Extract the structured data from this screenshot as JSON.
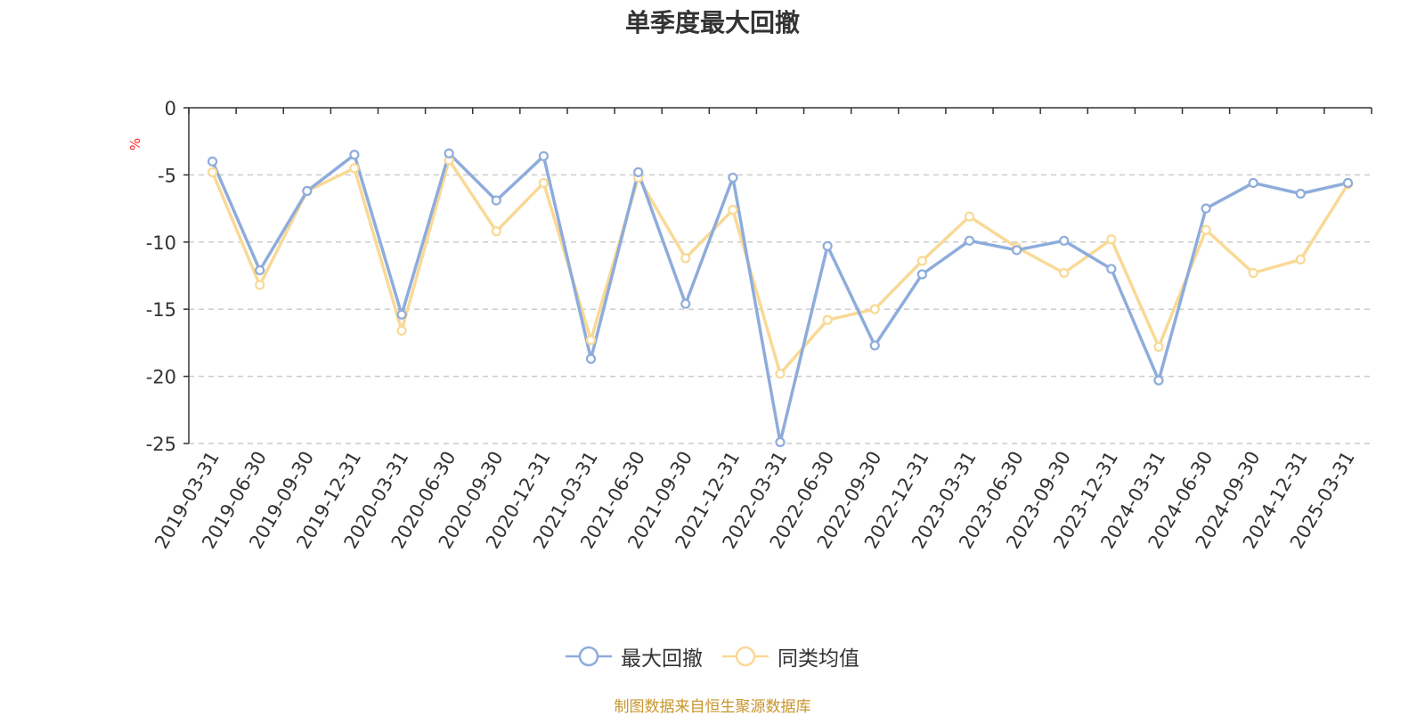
{
  "chart_data": {
    "type": "line",
    "title": "单季度最大回撤",
    "ylabel": "%",
    "ylim": [
      -25,
      0
    ],
    "yticks": [
      0,
      -5,
      -10,
      -15,
      -20,
      -25
    ],
    "grid": true,
    "legend_position": "bottom",
    "categories": [
      "2019-03-31",
      "2019-06-30",
      "2019-09-30",
      "2019-12-31",
      "2020-03-31",
      "2020-06-30",
      "2020-09-30",
      "2020-12-31",
      "2021-03-31",
      "2021-06-30",
      "2021-09-30",
      "2021-12-31",
      "2022-03-31",
      "2022-06-30",
      "2022-09-30",
      "2022-12-31",
      "2023-03-31",
      "2023-06-30",
      "2023-09-30",
      "2023-12-31",
      "2024-03-31",
      "2024-06-30",
      "2024-09-30",
      "2024-12-31",
      "2025-03-31"
    ],
    "series": [
      {
        "name": "最大回撤",
        "color": "#8eacdb",
        "values": [
          -4.0,
          -12.1,
          -6.2,
          -3.5,
          -15.4,
          -3.4,
          -6.9,
          -3.6,
          -18.7,
          -4.8,
          -14.6,
          -5.2,
          -24.9,
          -10.3,
          -17.7,
          -12.4,
          -9.9,
          -10.6,
          -9.9,
          -12.0,
          -20.3,
          -7.5,
          -5.6,
          -6.4,
          -5.6
        ]
      },
      {
        "name": "同类均值",
        "color": "#f9d996",
        "values": [
          -4.8,
          -13.2,
          -6.2,
          -4.5,
          -16.6,
          -3.9,
          -9.2,
          -5.6,
          -17.3,
          -5.2,
          -11.2,
          -7.6,
          -19.8,
          -15.8,
          -15.0,
          -11.4,
          -8.1,
          -10.4,
          -12.3,
          -9.8,
          -17.8,
          -9.1,
          -12.3,
          -11.3,
          -5.7
        ]
      }
    ]
  },
  "footer": "制图数据来自恒生聚源数据库"
}
